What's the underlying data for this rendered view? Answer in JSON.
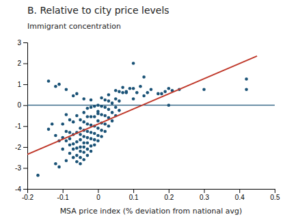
{
  "chart_data": {
    "type": "scatter",
    "title": "B. Relative to city price levels",
    "ylabel": "Immigrant concentration",
    "xlabel": "MSA price index (% deviation from national avg)",
    "xlim": [
      -0.2,
      0.5
    ],
    "ylim": [
      -4,
      3
    ],
    "xticks": [
      -0.2,
      -0.1,
      0,
      0.1,
      0.2,
      0.3,
      0.4,
      0.5
    ],
    "yticks": [
      -4,
      -3,
      -2,
      -1,
      0,
      1,
      2,
      3
    ],
    "reference_lines": [
      {
        "y": 0,
        "color": "#1a5276"
      }
    ],
    "series": [
      {
        "type": "scatter",
        "color": "#1a5276",
        "x": [
          -0.17,
          -0.14,
          -0.13,
          -0.12,
          -0.12,
          -0.11,
          -0.11,
          -0.1,
          -0.1,
          -0.1,
          -0.09,
          -0.09,
          -0.09,
          -0.09,
          -0.08,
          -0.08,
          -0.08,
          -0.08,
          -0.08,
          -0.07,
          -0.07,
          -0.07,
          -0.07,
          -0.07,
          -0.06,
          -0.06,
          -0.06,
          -0.06,
          -0.06,
          -0.06,
          -0.05,
          -0.05,
          -0.05,
          -0.05,
          -0.05,
          -0.05,
          -0.05,
          -0.05,
          -0.04,
          -0.04,
          -0.04,
          -0.04,
          -0.04,
          -0.04,
          -0.04,
          -0.04,
          -0.03,
          -0.03,
          -0.03,
          -0.03,
          -0.03,
          -0.03,
          -0.03,
          -0.03,
          -0.02,
          -0.02,
          -0.02,
          -0.02,
          -0.02,
          -0.02,
          -0.02,
          -0.01,
          -0.01,
          -0.01,
          -0.01,
          -0.01,
          -0.01,
          0.0,
          0.0,
          0.0,
          0.0,
          0.0,
          0.0,
          0.0,
          0.01,
          0.01,
          0.01,
          0.01,
          0.01,
          0.02,
          0.02,
          0.02,
          0.02,
          0.02,
          0.03,
          0.03,
          0.03,
          0.03,
          0.04,
          0.04,
          0.04,
          0.05,
          0.05,
          0.05,
          0.05,
          0.06,
          0.06,
          0.07,
          0.07,
          0.08,
          0.09,
          0.1,
          0.1,
          0.11,
          0.12,
          0.13,
          0.14,
          0.15,
          0.17,
          0.19,
          0.2,
          0.21,
          0.23,
          0.3,
          0.42,
          0.42,
          -0.14,
          -0.12,
          -0.11,
          -0.09,
          -0.07,
          -0.06,
          -0.04,
          -0.02,
          0.01,
          0.03,
          0.06,
          0.08,
          0.1,
          0.13,
          0.18,
          0.2
        ],
        "values": [
          -3.35,
          -1.15,
          -0.9,
          -1.45,
          -2.8,
          -2.95,
          -1.7,
          -1.55,
          -2.1,
          -0.9,
          -2.65,
          -1.7,
          -1.25,
          -0.45,
          -2.3,
          -1.9,
          -1.6,
          -1.3,
          -0.7,
          -2.5,
          -2.1,
          -1.85,
          -1.4,
          -0.8,
          -2.7,
          -2.4,
          -2.05,
          -1.75,
          -1.3,
          -0.5,
          -2.8,
          -2.5,
          -2.2,
          -2.0,
          -1.65,
          -1.4,
          -1.1,
          -0.7,
          -2.6,
          -2.25,
          -2.0,
          -1.8,
          -1.5,
          -1.2,
          -0.8,
          -0.35,
          -2.4,
          -2.1,
          -1.8,
          -1.55,
          -1.25,
          -0.9,
          -0.55,
          -0.15,
          -2.2,
          -1.95,
          -1.6,
          -1.3,
          -0.95,
          -0.55,
          -0.1,
          -1.9,
          -1.65,
          -1.35,
          -1.0,
          -0.55,
          -0.05,
          -1.7,
          -1.45,
          -1.1,
          -0.75,
          -0.3,
          0.0,
          -0.4,
          -1.5,
          -1.2,
          -0.85,
          -0.45,
          -0.05,
          -1.25,
          -0.9,
          -0.5,
          -0.1,
          0.25,
          -1.0,
          -0.6,
          -0.2,
          0.2,
          -0.75,
          -0.35,
          0.1,
          -0.5,
          -0.1,
          0.3,
          0.7,
          -0.25,
          0.2,
          0.6,
          0.85,
          0.65,
          0.8,
          2.0,
          0.3,
          0.6,
          0.9,
          1.35,
          0.6,
          0.75,
          0.55,
          0.65,
          0.0,
          0.7,
          0.75,
          0.75,
          1.25,
          0.75,
          1.15,
          0.9,
          1.0,
          0.75,
          0.45,
          0.55,
          0.3,
          0.25,
          0.35,
          0.5,
          0.65,
          0.6,
          0.8,
          0.45,
          0.55,
          0.8
        ]
      },
      {
        "type": "line",
        "color": "#c0392b",
        "x": [
          -0.2,
          0.45
        ],
        "values": [
          -2.35,
          2.35
        ]
      }
    ]
  }
}
